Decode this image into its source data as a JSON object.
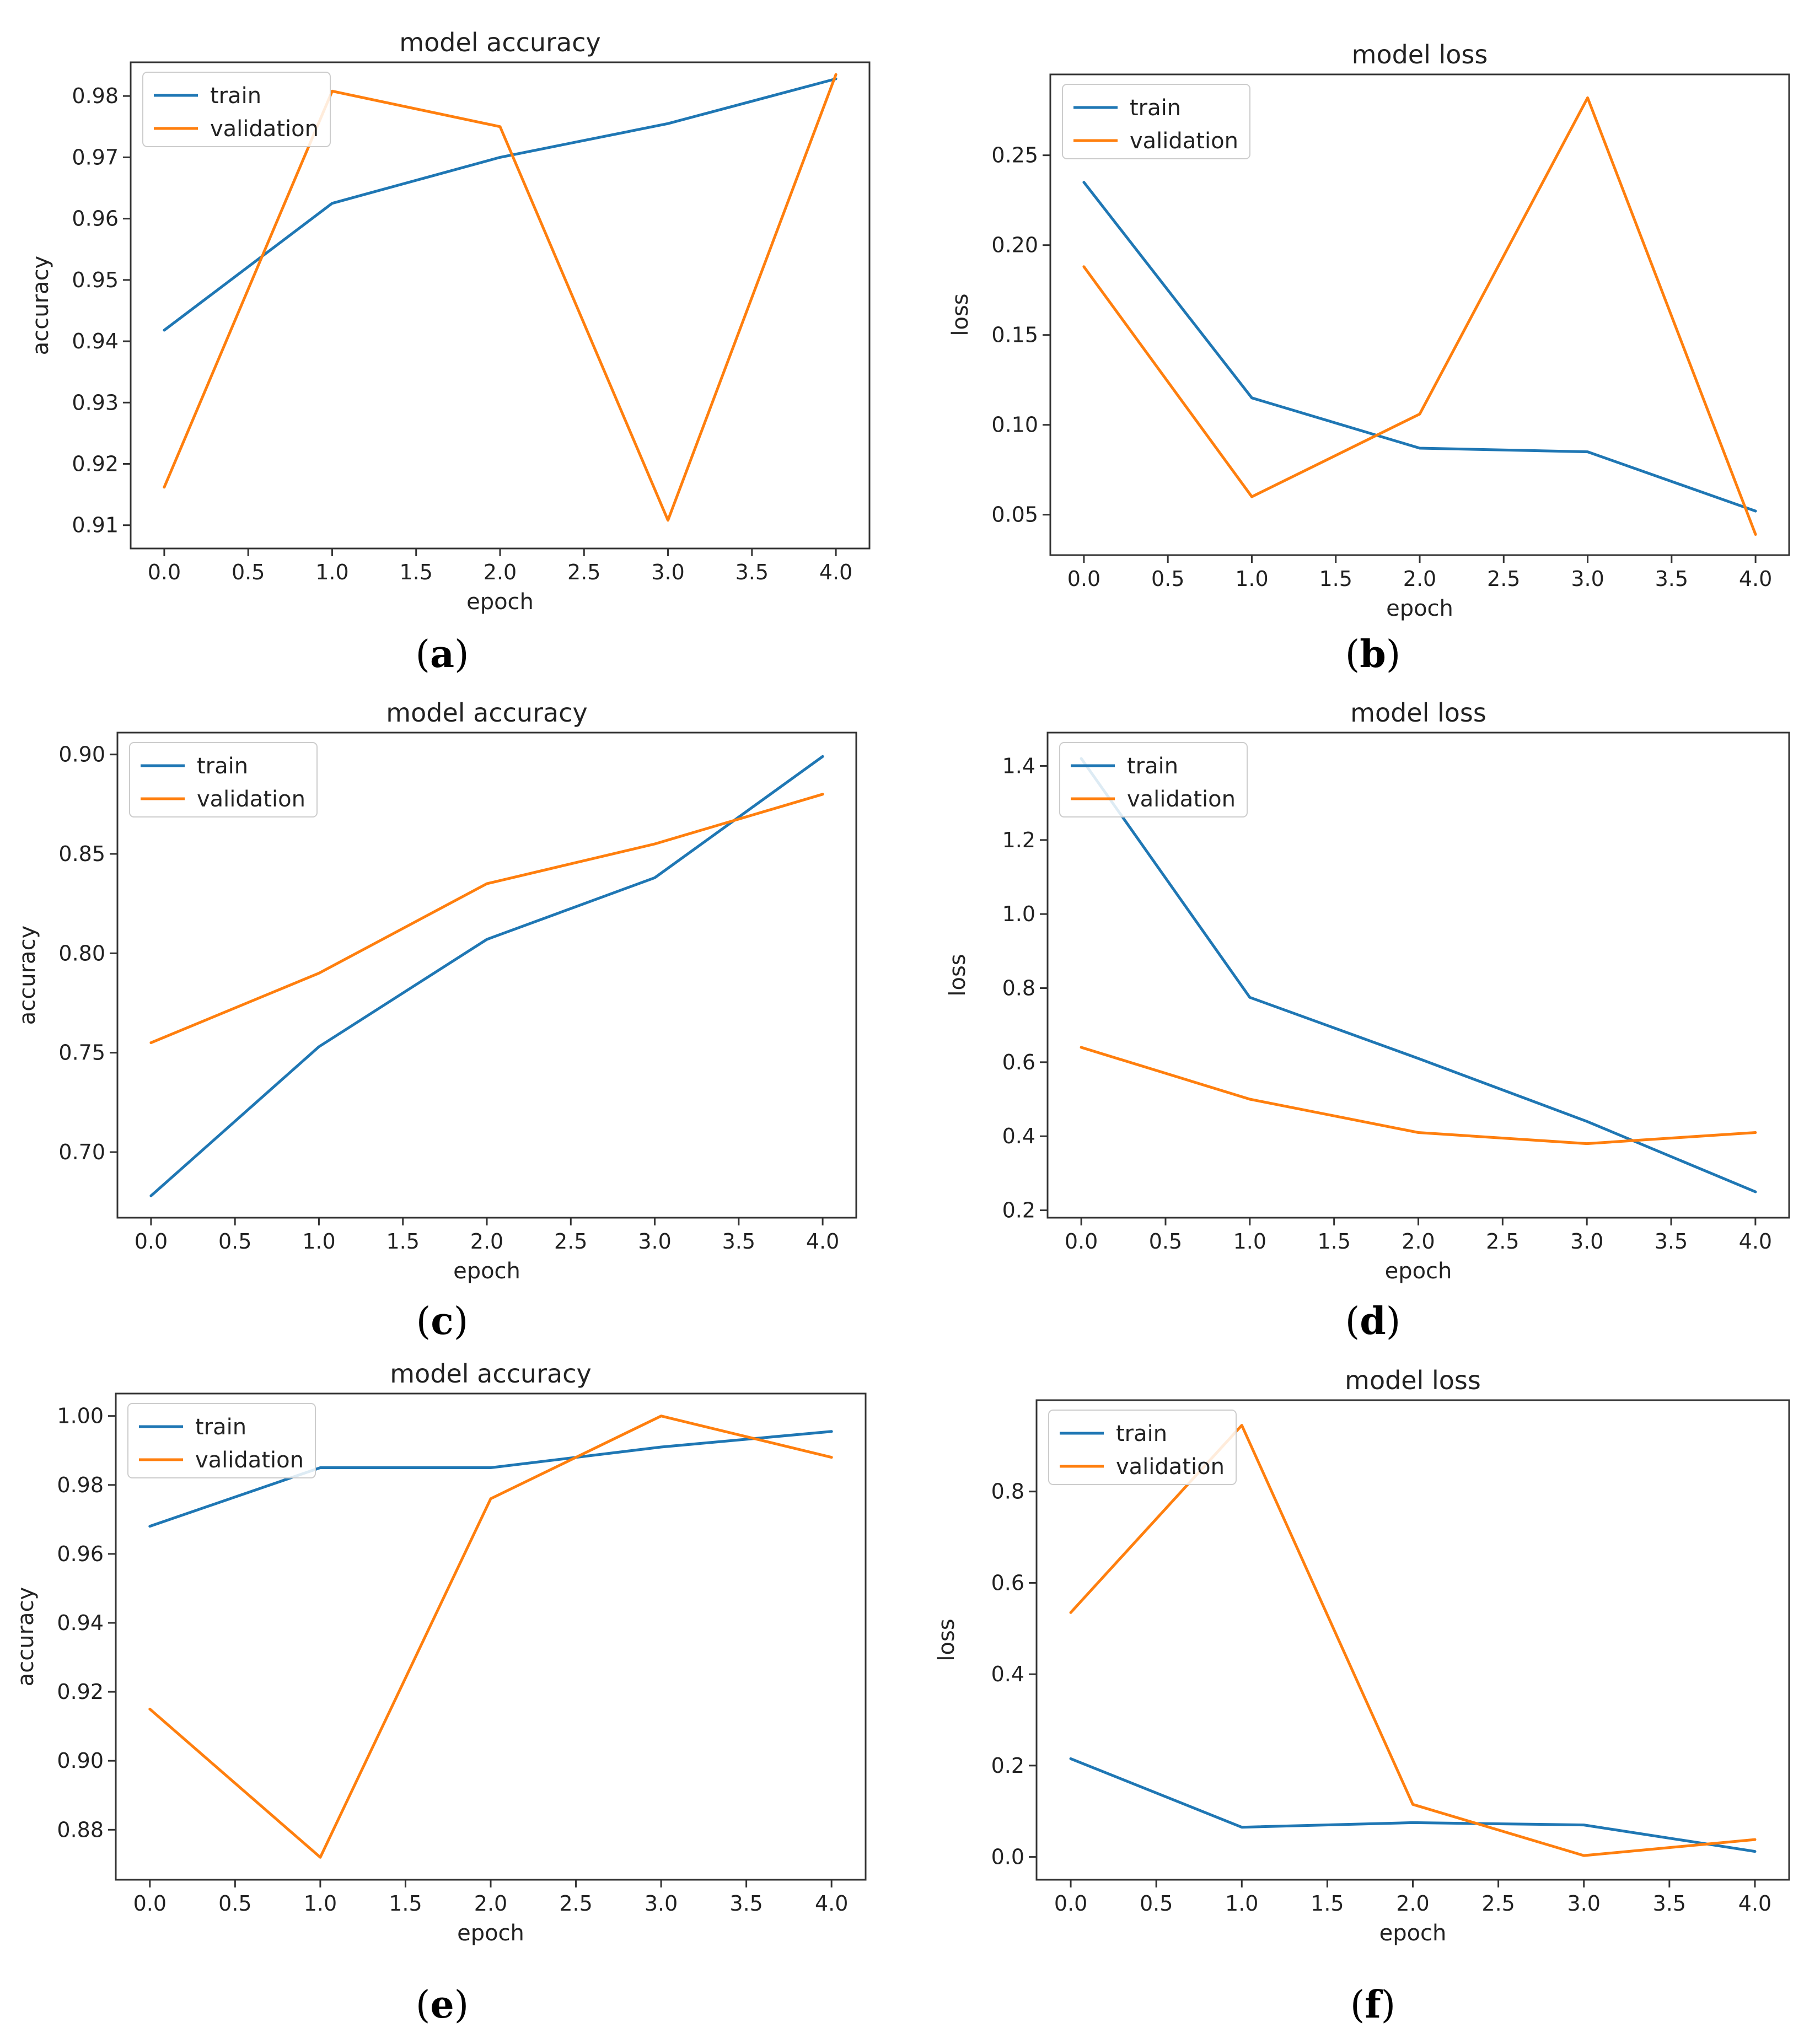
{
  "colors": {
    "train": "#1f77b4",
    "validation": "#ff7f0e"
  },
  "chart_data": [
    {
      "id": "a",
      "panel_label": "a",
      "type": "line",
      "title": "model accuracy",
      "xlabel": "epoch",
      "ylabel": "accuracy",
      "xlim": [
        -0.2,
        4.2
      ],
      "ylim": [
        0.9062,
        0.9855
      ],
      "xticks": [
        0.0,
        0.5,
        1.0,
        1.5,
        2.0,
        2.5,
        3.0,
        3.5,
        4.0
      ],
      "xtick_labels": [
        "0.0",
        "0.5",
        "1.0",
        "1.5",
        "2.0",
        "2.5",
        "3.0",
        "3.5",
        "4.0"
      ],
      "yticks": [
        0.91,
        0.92,
        0.93,
        0.94,
        0.95,
        0.96,
        0.97,
        0.98
      ],
      "ytick_labels": [
        "0.91",
        "0.92",
        "0.93",
        "0.94",
        "0.95",
        "0.96",
        "0.97",
        "0.98"
      ],
      "x": [
        0,
        1,
        2,
        3,
        4
      ],
      "series": [
        {
          "name": "train",
          "values": [
            0.9418,
            0.9625,
            0.97,
            0.9755,
            0.9828
          ]
        },
        {
          "name": "validation",
          "values": [
            0.9162,
            0.9808,
            0.975,
            0.9108,
            0.9835
          ]
        }
      ]
    },
    {
      "id": "b",
      "panel_label": "b",
      "type": "line",
      "title": "model loss",
      "xlabel": "epoch",
      "ylabel": "loss",
      "xlim": [
        -0.2,
        4.2
      ],
      "ylim": [
        0.0275,
        0.295
      ],
      "xticks": [
        0.0,
        0.5,
        1.0,
        1.5,
        2.0,
        2.5,
        3.0,
        3.5,
        4.0
      ],
      "xtick_labels": [
        "0.0",
        "0.5",
        "1.0",
        "1.5",
        "2.0",
        "2.5",
        "3.0",
        "3.5",
        "4.0"
      ],
      "yticks": [
        0.05,
        0.1,
        0.15,
        0.2,
        0.25
      ],
      "ytick_labels": [
        "0.05",
        "0.10",
        "0.15",
        "0.20",
        "0.25"
      ],
      "x": [
        0,
        1,
        2,
        3,
        4
      ],
      "series": [
        {
          "name": "train",
          "values": [
            0.235,
            0.115,
            0.087,
            0.085,
            0.052
          ]
        },
        {
          "name": "validation",
          "values": [
            0.188,
            0.06,
            0.106,
            0.282,
            0.039
          ]
        }
      ]
    },
    {
      "id": "c",
      "panel_label": "c",
      "type": "line",
      "title": "model accuracy",
      "xlabel": "epoch",
      "ylabel": "accuracy",
      "xlim": [
        -0.2,
        4.2
      ],
      "ylim": [
        0.667,
        0.911
      ],
      "xticks": [
        0.0,
        0.5,
        1.0,
        1.5,
        2.0,
        2.5,
        3.0,
        3.5,
        4.0
      ],
      "xtick_labels": [
        "0.0",
        "0.5",
        "1.0",
        "1.5",
        "2.0",
        "2.5",
        "3.0",
        "3.5",
        "4.0"
      ],
      "yticks": [
        0.7,
        0.75,
        0.8,
        0.85,
        0.9
      ],
      "ytick_labels": [
        "0.70",
        "0.75",
        "0.80",
        "0.85",
        "0.90"
      ],
      "x": [
        0,
        1,
        2,
        3,
        4
      ],
      "series": [
        {
          "name": "train",
          "values": [
            0.678,
            0.753,
            0.807,
            0.838,
            0.899
          ]
        },
        {
          "name": "validation",
          "values": [
            0.755,
            0.79,
            0.835,
            0.855,
            0.88
          ]
        }
      ]
    },
    {
      "id": "d",
      "panel_label": "d",
      "type": "line",
      "title": "model loss",
      "xlabel": "epoch",
      "ylabel": "loss",
      "xlim": [
        -0.2,
        4.2
      ],
      "ylim": [
        0.18,
        1.49
      ],
      "xticks": [
        0.0,
        0.5,
        1.0,
        1.5,
        2.0,
        2.5,
        3.0,
        3.5,
        4.0
      ],
      "xtick_labels": [
        "0.0",
        "0.5",
        "1.0",
        "1.5",
        "2.0",
        "2.5",
        "3.0",
        "3.5",
        "4.0"
      ],
      "yticks": [
        0.2,
        0.4,
        0.6,
        0.8,
        1.0,
        1.2,
        1.4
      ],
      "ytick_labels": [
        "0.2",
        "0.4",
        "0.6",
        "0.8",
        "1.0",
        "1.2",
        "1.4"
      ],
      "x": [
        0,
        1,
        2,
        3,
        4
      ],
      "series": [
        {
          "name": "train",
          "values": [
            1.42,
            0.775,
            0.61,
            0.44,
            0.25
          ]
        },
        {
          "name": "validation",
          "values": [
            0.64,
            0.5,
            0.41,
            0.38,
            0.41
          ]
        }
      ]
    },
    {
      "id": "e",
      "panel_label": "e",
      "type": "line",
      "title": "model accuracy",
      "xlabel": "epoch",
      "ylabel": "accuracy",
      "xlim": [
        -0.2,
        4.2
      ],
      "ylim": [
        0.8655,
        1.0065
      ],
      "xticks": [
        0.0,
        0.5,
        1.0,
        1.5,
        2.0,
        2.5,
        3.0,
        3.5,
        4.0
      ],
      "xtick_labels": [
        "0.0",
        "0.5",
        "1.0",
        "1.5",
        "2.0",
        "2.5",
        "3.0",
        "3.5",
        "4.0"
      ],
      "yticks": [
        0.88,
        0.9,
        0.92,
        0.94,
        0.96,
        0.98,
        1.0
      ],
      "ytick_labels": [
        "0.88",
        "0.90",
        "0.92",
        "0.94",
        "0.96",
        "0.98",
        "1.00"
      ],
      "x": [
        0,
        1,
        2,
        3,
        4
      ],
      "series": [
        {
          "name": "train",
          "values": [
            0.968,
            0.985,
            0.985,
            0.991,
            0.9955
          ]
        },
        {
          "name": "validation",
          "values": [
            0.915,
            0.872,
            0.976,
            1.0,
            0.988
          ]
        }
      ]
    },
    {
      "id": "f",
      "panel_label": "f",
      "type": "line",
      "title": "model loss",
      "xlabel": "epoch",
      "ylabel": "loss",
      "xlim": [
        -0.2,
        4.2
      ],
      "ylim": [
        -0.05,
        1.0
      ],
      "xticks": [
        0.0,
        0.5,
        1.0,
        1.5,
        2.0,
        2.5,
        3.0,
        3.5,
        4.0
      ],
      "xtick_labels": [
        "0.0",
        "0.5",
        "1.0",
        "1.5",
        "2.0",
        "2.5",
        "3.0",
        "3.5",
        "4.0"
      ],
      "yticks": [
        0.0,
        0.2,
        0.4,
        0.6,
        0.8
      ],
      "ytick_labels": [
        "0.0",
        "0.2",
        "0.4",
        "0.6",
        "0.8"
      ],
      "x": [
        0,
        1,
        2,
        3,
        4
      ],
      "series": [
        {
          "name": "train",
          "values": [
            0.215,
            0.065,
            0.075,
            0.07,
            0.012
          ]
        },
        {
          "name": "validation",
          "values": [
            0.535,
            0.945,
            0.115,
            0.003,
            0.038
          ]
        }
      ]
    }
  ]
}
